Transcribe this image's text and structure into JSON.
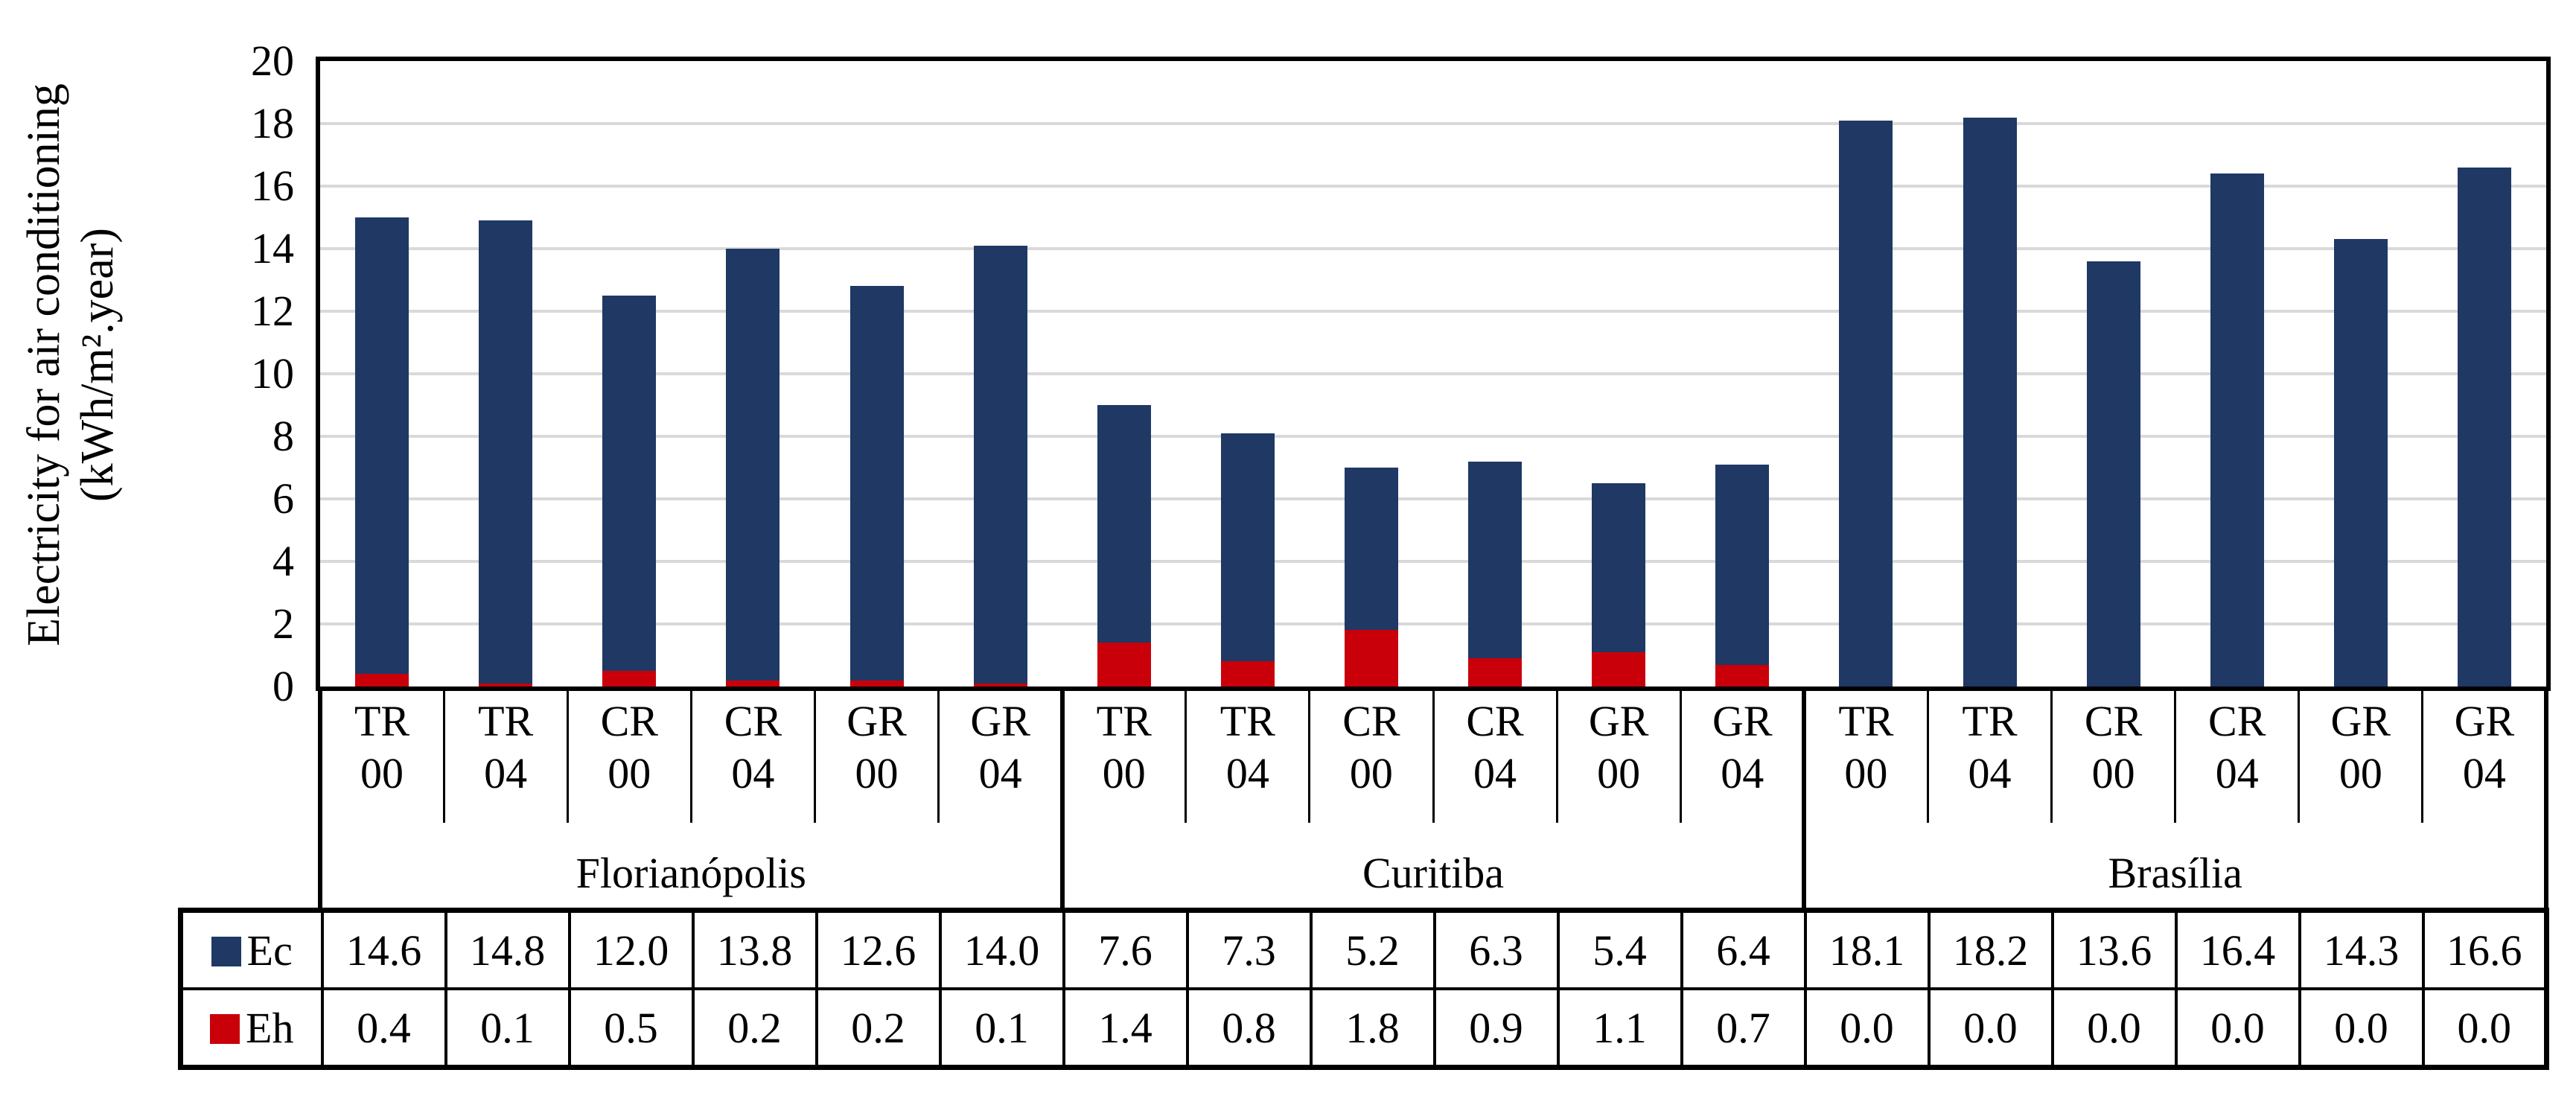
{
  "chart_data": {
    "type": "bar",
    "stacked": true,
    "title": "",
    "ylabel_line1": "Electricity for air conditioning",
    "ylabel_line2": "(kWh/m².year)",
    "ylim": [
      0,
      20
    ],
    "ytick_step": 2,
    "yticks": [
      "20",
      "18",
      "16",
      "14",
      "12",
      "10",
      "8",
      "6",
      "4",
      "2",
      "0"
    ],
    "grid": "horizontal",
    "grid_color": "#D9D9D9",
    "legend_position": "table-left",
    "groups": [
      {
        "city": "Florianópolis",
        "categories": [
          [
            "TR",
            "00"
          ],
          [
            "TR",
            "04"
          ],
          [
            "CR",
            "00"
          ],
          [
            "CR",
            "04"
          ],
          [
            "GR",
            "00"
          ],
          [
            "GR",
            "04"
          ]
        ]
      },
      {
        "city": "Curitiba",
        "categories": [
          [
            "TR",
            "00"
          ],
          [
            "TR",
            "04"
          ],
          [
            "CR",
            "00"
          ],
          [
            "CR",
            "04"
          ],
          [
            "GR",
            "00"
          ],
          [
            "GR",
            "04"
          ]
        ]
      },
      {
        "city": "Brasília",
        "categories": [
          [
            "TR",
            "00"
          ],
          [
            "TR",
            "04"
          ],
          [
            "CR",
            "00"
          ],
          [
            "CR",
            "04"
          ],
          [
            "GR",
            "00"
          ],
          [
            "GR",
            "04"
          ]
        ]
      }
    ],
    "series": [
      {
        "name": "Ec",
        "color": "#1F3864",
        "values": [
          "14.6",
          "14.8",
          "12.0",
          "13.8",
          "12.6",
          "14.0",
          "7.6",
          "7.3",
          "5.2",
          "6.3",
          "5.4",
          "6.4",
          "18.1",
          "18.2",
          "13.6",
          "16.4",
          "14.3",
          "16.6"
        ]
      },
      {
        "name": "Eh",
        "color": "#C9000A",
        "values": [
          "0.4",
          "0.1",
          "0.5",
          "0.2",
          "0.2",
          "0.1",
          "1.4",
          "0.8",
          "1.8",
          "0.9",
          "1.1",
          "0.7",
          "0.0",
          "0.0",
          "0.0",
          "0.0",
          "0.0",
          "0.0"
        ]
      }
    ]
  }
}
